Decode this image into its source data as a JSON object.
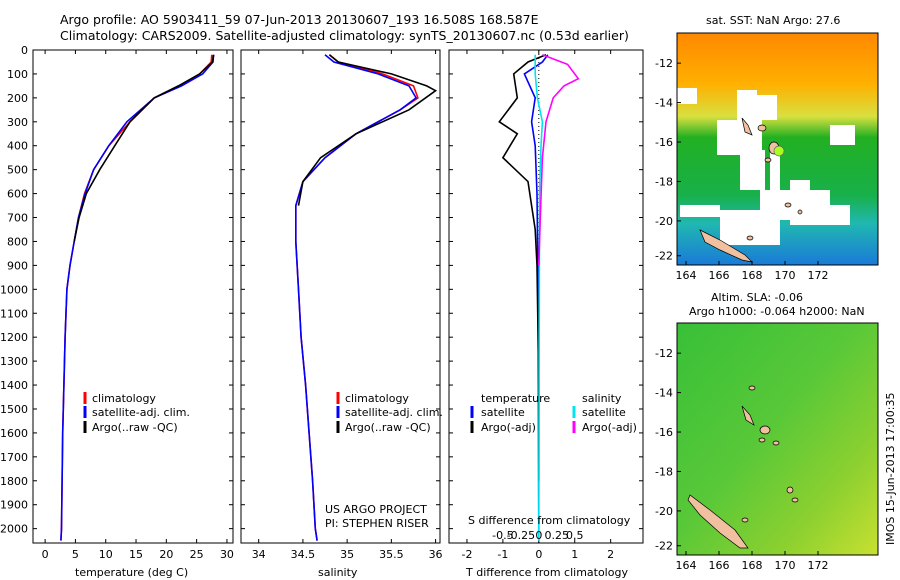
{
  "header": {
    "title_line1": "Argo profile: AO 5903411_59 07-Jun-2013 20130607_193 16.508S 168.587E",
    "title_line2": "Climatology: CARS2009. Satellite-adjusted climatology: synTS_20130607.nc (0.53d earlier)"
  },
  "colors": {
    "climatology": "#ff0000",
    "satellite": "#0000ff",
    "argo": "#000000",
    "sat_salinity": "#00e5ee",
    "argo_salinity": "#ff00ff"
  },
  "depth_axis": {
    "ticks": [
      "0",
      "100",
      "200",
      "300",
      "400",
      "500",
      "600",
      "700",
      "800",
      "900",
      "1000",
      "1100",
      "1200",
      "1300",
      "1400",
      "1500",
      "1600",
      "1700",
      "1800",
      "1900",
      "2000"
    ],
    "range": [
      0,
      2060
    ]
  },
  "panels": {
    "temperature": {
      "xlabel": "temperature (deg C)",
      "xticks": [
        "0",
        "5",
        "10",
        "15",
        "20",
        "25",
        "30"
      ],
      "xlim": [
        -2,
        31
      ],
      "legend": [
        "climatology",
        "satellite-adj. clim.",
        "Argo(..raw -QC)"
      ]
    },
    "salinity": {
      "xlabel": "salinity",
      "xticks": [
        "34",
        "34.5",
        "35",
        "35.5",
        "36"
      ],
      "xlim": [
        33.8,
        36.05
      ],
      "legend": [
        "climatology",
        "satellite-adj. clim.",
        "Argo(..raw -QC)"
      ],
      "note1": "US ARGO PROJECT",
      "note2": "PI: STEPHEN RISER"
    },
    "difference": {
      "xlabel": "T difference from climatology",
      "xticks": [
        "-2",
        "-1",
        "0",
        "1",
        "2"
      ],
      "xlim": [
        -2.5,
        2.9
      ],
      "top_label": "S difference from climatology",
      "top_ticks": [
        "-0.5",
        "-0.25",
        "0",
        "0.25",
        "0.5"
      ],
      "legend_temp_title": "temperature",
      "legend_sal_title": "salinity",
      "legend_items": [
        "satellite",
        "Argo(-adj)",
        "satellite",
        "Argo(-adj)"
      ]
    }
  },
  "maps": {
    "sst": {
      "title": "sat. SST: NaN Argo: 27.6"
    },
    "sla": {
      "title1": "Altim. SLA: -0.06",
      "title2": "Argo h1000: -0.064 h2000: NaN"
    },
    "lat_ticks": [
      "-12",
      "-14",
      "-16",
      "-18",
      "-20",
      "-22"
    ],
    "lon_ticks": [
      "164",
      "166",
      "168",
      "170",
      "172"
    ]
  },
  "footer": {
    "stamp": "IMOS 15-Jun-2013 17:00:35"
  },
  "chart_data": [
    {
      "type": "line",
      "title": "temperature (deg C)",
      "xlabel": "temperature (deg C)",
      "ylabel": "depth",
      "xlim": [
        -2,
        31
      ],
      "ylim": [
        2060,
        0
      ],
      "series": [
        {
          "name": "climatology",
          "color": "#ff0000",
          "x": [
            27.5,
            27.4,
            25.5,
            22,
            18,
            14,
            10.5,
            8,
            6.5,
            5.5,
            4.8,
            4.1,
            3.6,
            3.3,
            3.1,
            2.9,
            2.8,
            2.7,
            2.6
          ],
          "y": [
            20,
            50,
            100,
            150,
            200,
            300,
            400,
            500,
            600,
            700,
            800,
            900,
            1000,
            1200,
            1400,
            1600,
            1800,
            2000,
            2050
          ]
        },
        {
          "name": "satellite-adj. clim.",
          "color": "#0000ff",
          "x": [
            27.8,
            27.7,
            26,
            22.5,
            18,
            13.5,
            10.5,
            8,
            6.6,
            5.5,
            4.8,
            4.1,
            3.6,
            3.3,
            3.1,
            2.9,
            2.8,
            2.7,
            2.6
          ],
          "y": [
            20,
            50,
            100,
            150,
            200,
            300,
            400,
            500,
            600,
            700,
            800,
            900,
            1000,
            1200,
            1400,
            1600,
            1800,
            2000,
            2050
          ]
        },
        {
          "name": "Argo(..raw -QC)",
          "color": "#000000",
          "x": [
            27.8,
            27.6,
            25.5,
            22,
            18,
            14,
            11.5,
            9,
            6.8,
            5.6,
            4.8
          ],
          "y": [
            20,
            50,
            100,
            150,
            200,
            300,
            400,
            500,
            600,
            700,
            800
          ]
        }
      ]
    },
    {
      "type": "line",
      "title": "salinity",
      "xlabel": "salinity",
      "ylabel": "depth",
      "xlim": [
        33.8,
        36.05
      ],
      "ylim": [
        2060,
        0
      ],
      "series": [
        {
          "name": "climatology",
          "color": "#ff0000",
          "x": [
            34.8,
            34.9,
            35.4,
            35.75,
            35.8,
            35.6,
            35.1,
            34.75,
            34.5,
            34.42,
            34.42,
            34.45,
            34.48,
            34.53,
            34.57,
            34.61,
            34.64,
            34.66
          ],
          "y": [
            20,
            50,
            100,
            150,
            200,
            250,
            350,
            450,
            550,
            650,
            800,
            1000,
            1200,
            1400,
            1600,
            1800,
            2000,
            2050
          ]
        },
        {
          "name": "satellite-adj. clim.",
          "color": "#0000ff",
          "x": [
            34.75,
            34.85,
            35.35,
            35.7,
            35.78,
            35.6,
            35.1,
            34.75,
            34.5,
            34.42,
            34.42,
            34.45,
            34.48,
            34.53,
            34.57,
            34.61,
            34.64,
            34.66
          ],
          "y": [
            20,
            50,
            100,
            150,
            200,
            250,
            350,
            450,
            550,
            650,
            800,
            1000,
            1200,
            1400,
            1600,
            1800,
            2000,
            2050
          ]
        },
        {
          "name": "Argo(..raw -QC)",
          "color": "#000000",
          "x": [
            34.8,
            34.9,
            35.5,
            35.9,
            36.0,
            35.7,
            35.1,
            34.7,
            34.5,
            34.45
          ],
          "y": [
            20,
            50,
            100,
            150,
            170,
            250,
            350,
            450,
            550,
            650
          ]
        }
      ]
    },
    {
      "type": "line",
      "title": "T difference from climatology",
      "xlabel": "T difference from climatology",
      "ylabel": "depth",
      "xlim": [
        -2.5,
        2.9
      ],
      "ylim": [
        2060,
        0
      ],
      "series": [
        {
          "name": "temperature satellite",
          "color": "#0000ff",
          "x": [
            0.25,
            0.1,
            -0.4,
            -0.1,
            -0.2,
            -0.1,
            -0.05,
            -0.02,
            0
          ],
          "y": [
            20,
            50,
            100,
            200,
            300,
            400,
            600,
            1000,
            2050
          ]
        },
        {
          "name": "temperature Argo(-adj)",
          "color": "#000000",
          "x": [
            0.2,
            -0.3,
            -0.7,
            -0.6,
            -1.1,
            -0.6,
            -1.0,
            -0.3,
            -0.2,
            -0.1,
            -0.05,
            0,
            0
          ],
          "y": [
            20,
            50,
            100,
            200,
            300,
            350,
            450,
            550,
            650,
            750,
            900,
            1400,
            1800
          ]
        },
        {
          "name": "salinity satellite",
          "color": "#00e5ee",
          "x": [
            -0.05,
            -0.05,
            -0.02,
            0.05,
            0.03,
            0.01,
            0
          ],
          "y": [
            20,
            100,
            200,
            300,
            400,
            600,
            2050
          ]
        },
        {
          "name": "salinity Argo(-adj)",
          "color": "#ff00ff",
          "x": [
            0.05,
            0.4,
            0.55,
            0.35,
            0.2,
            0.1,
            0.05,
            0.02,
            0
          ],
          "y": [
            20,
            60,
            120,
            150,
            200,
            300,
            450,
            700,
            900
          ]
        }
      ]
    }
  ]
}
